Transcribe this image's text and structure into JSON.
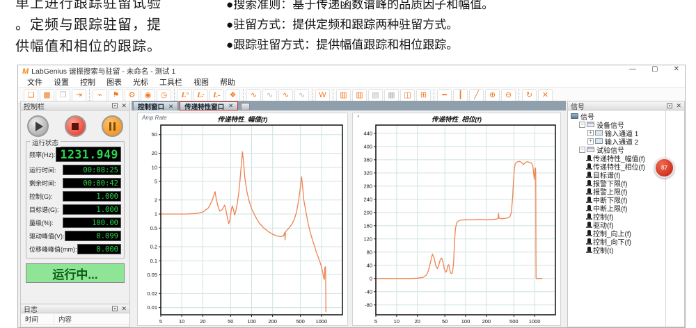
{
  "hero": {
    "left_lines": [
      "单上进行跟踪驻留试验",
      "。定频与跟踪驻留，提",
      "供幅值和相位的跟踪。"
    ],
    "bullets": [
      "●搜索准则：基于传递函数谱峰的品质因子和幅值。",
      "●驻留方式：提供定频和跟踪两种驻留方式。",
      "●跟踪驻留方式：提供幅值跟踪和相位跟踪。"
    ]
  },
  "window": {
    "title": "LabGenius 谐振搜索与驻留 - 未命名 - 测试 1",
    "logo": "M",
    "controls": {
      "minimize": "—",
      "restore": "▢",
      "close": "✕"
    }
  },
  "menu": {
    "items": [
      "文件",
      "设置",
      "控制",
      "图表",
      "光标",
      "工具栏",
      "视图",
      "帮助"
    ]
  },
  "toolbar": {
    "groups": [
      {
        "items": [
          {
            "name": "new-test",
            "glyph": "❏",
            "c": "o"
          },
          {
            "name": "save",
            "glyph": "▦",
            "c": "o"
          },
          {
            "name": "open",
            "glyph": "❒",
            "c": "g"
          },
          {
            "name": "export",
            "glyph": "⇥",
            "c": "o"
          }
        ]
      },
      {
        "items": [
          {
            "name": "device",
            "glyph": "⌁",
            "c": "o"
          },
          {
            "name": "flag",
            "glyph": "⚑",
            "c": "o"
          },
          {
            "name": "settings",
            "glyph": "⚙",
            "c": "o"
          },
          {
            "name": "spectrum",
            "glyph": "◉",
            "c": "o"
          },
          {
            "name": "schedule",
            "glyph": "◷",
            "c": "o"
          }
        ]
      },
      {
        "items": [
          {
            "name": "level-zero",
            "glyph": "Lº",
            "c": "o",
            "lv": true
          },
          {
            "name": "level-up",
            "glyph": "L:",
            "c": "o",
            "lv": true
          },
          {
            "name": "level-down",
            "glyph": "L-",
            "c": "o",
            "lv": true
          },
          {
            "name": "window-layout",
            "glyph": "❖",
            "c": "o"
          }
        ]
      },
      {
        "items": [
          {
            "name": "wave-start",
            "glyph": "∿",
            "c": "o"
          },
          {
            "name": "wave-stop",
            "glyph": "∿",
            "c": "g"
          },
          {
            "name": "wave-loop",
            "glyph": "∿",
            "c": "o"
          },
          {
            "name": "wave-pause",
            "glyph": "∿",
            "c": "g"
          }
        ]
      },
      {
        "items": [
          {
            "name": "word-report",
            "glyph": "W",
            "c": "o"
          }
        ]
      },
      {
        "items": [
          {
            "name": "chart-bars-1",
            "glyph": "▥",
            "c": "o"
          },
          {
            "name": "chart-bars-2",
            "glyph": "▥",
            "c": "o"
          },
          {
            "name": "chart-bars-3",
            "glyph": "▤",
            "c": "g"
          },
          {
            "name": "chart-bars-4",
            "glyph": "▦",
            "c": "g"
          },
          {
            "name": "layout-split",
            "glyph": "◫",
            "c": "o"
          },
          {
            "name": "layout-grid",
            "glyph": "⊞",
            "c": "o"
          }
        ]
      },
      {
        "items": [
          {
            "name": "cursor-horizontal",
            "glyph": "━",
            "c": "o"
          },
          {
            "name": "cursor-vertical",
            "glyph": "┃",
            "c": "o"
          },
          {
            "name": "cursor-slope",
            "glyph": "╱",
            "c": "o"
          },
          {
            "name": "zoom-in",
            "glyph": "⊕",
            "c": "o"
          },
          {
            "name": "zoom-out",
            "glyph": "⊖",
            "c": "o"
          }
        ]
      },
      {
        "items": [
          {
            "name": "refresh",
            "glyph": "↻",
            "c": "o"
          },
          {
            "name": "auto-scale",
            "glyph": "✕",
            "c": "o"
          }
        ]
      }
    ]
  },
  "tabs": {
    "items": [
      {
        "label": "控制窗口",
        "close": "✕",
        "active": false
      },
      {
        "label": "传递特性窗口",
        "close": "✕",
        "active": true
      }
    ]
  },
  "control_panel": {
    "header": "控制栏",
    "status_group": "运行状态",
    "rows": [
      {
        "label": "频率(Hz):",
        "value": "1231.949",
        "big": true
      },
      {
        "label": "运行时间:",
        "value": "00:08:25"
      },
      {
        "label": "剩余时间:",
        "value": "00:00:42"
      },
      {
        "label": "控制(G):",
        "value": "1.000"
      },
      {
        "label": "目标谱(G):",
        "value": "1.000"
      },
      {
        "label": "量级(%):",
        "value": "100.00"
      },
      {
        "label": "驱动峰值(V):",
        "value": "0.099"
      },
      {
        "label": "位移峰峰值(mm):",
        "value": "0.000"
      }
    ],
    "run_state": "运行中..."
  },
  "log_panel": {
    "header": "日志",
    "columns": [
      "时间",
      "内容"
    ]
  },
  "signal_panel": {
    "header": "信号",
    "badge": "87",
    "tree": [
      {
        "label": "信号",
        "depth": 0,
        "icon": "root"
      },
      {
        "label": "设备信号",
        "depth": 1,
        "icon": "node",
        "exp": "−"
      },
      {
        "label": "输入通道 1",
        "depth": 2,
        "icon": "channel",
        "exp": "+"
      },
      {
        "label": "输入通道 2",
        "depth": 2,
        "icon": "channel",
        "exp": "+"
      },
      {
        "label": "试验信号",
        "depth": 1,
        "icon": "node",
        "exp": "−"
      },
      {
        "label": "传递特性_幅值(f)",
        "depth": 2,
        "icon": "leaf"
      },
      {
        "label": "传递特性_相位(f)",
        "depth": 2,
        "icon": "leaf"
      },
      {
        "label": "目标谱(f)",
        "depth": 2,
        "icon": "leaf"
      },
      {
        "label": "报警下限(f)",
        "depth": 2,
        "icon": "leaf"
      },
      {
        "label": "报警上限(f)",
        "depth": 2,
        "icon": "leaf"
      },
      {
        "label": "中断下限(f)",
        "depth": 2,
        "icon": "leaf"
      },
      {
        "label": "中断上限(f)",
        "depth": 2,
        "icon": "leaf"
      },
      {
        "label": "控制(f)",
        "depth": 2,
        "icon": "leaf"
      },
      {
        "label": "驱动(f)",
        "depth": 2,
        "icon": "leaf"
      },
      {
        "label": "控制_向上(f)",
        "depth": 2,
        "icon": "leaf"
      },
      {
        "label": "控制_向下(f)",
        "depth": 2,
        "icon": "leaf"
      },
      {
        "label": "控制(t)",
        "depth": 2,
        "icon": "leaf"
      }
    ]
  },
  "chart_data": [
    {
      "type": "line",
      "title": "传递特性_幅值(f)",
      "unit_label": "Amp Rate",
      "x_scale": "log",
      "y_scale": "log",
      "x_range": [
        5,
        2000
      ],
      "y_range": [
        0.007,
        80
      ],
      "x_ticks": [
        5,
        10,
        20,
        50,
        100,
        200,
        500,
        1000
      ],
      "y_ticks": [
        50,
        20,
        10,
        5,
        2,
        1,
        0.5,
        0.2,
        0.1,
        0.05,
        0.02,
        0.01
      ],
      "grid": true,
      "legend": "none",
      "series": [
        {
          "name": "传递特性_幅值",
          "color": "#ee8351",
          "points": [
            [
              5,
              1
            ],
            [
              8,
              1
            ],
            [
              12,
              1
            ],
            [
              16,
              1.03
            ],
            [
              20,
              1.1
            ],
            [
              24,
              1.35
            ],
            [
              27,
              1.9
            ],
            [
              29,
              2.6
            ],
            [
              30,
              3.0
            ],
            [
              31,
              2.2
            ],
            [
              33,
              1.45
            ],
            [
              35,
              1.15
            ],
            [
              38,
              1.25
            ],
            [
              41,
              1.55
            ],
            [
              43,
              1.2
            ],
            [
              45,
              0.85
            ],
            [
              47,
              0.62
            ],
            [
              49,
              0.75
            ],
            [
              51,
              1.2
            ],
            [
              53,
              1.5
            ],
            [
              55,
              1.25
            ],
            [
              57,
              0.95
            ],
            [
              59,
              1.1
            ],
            [
              62,
              1.6
            ],
            [
              65,
              2.6
            ],
            [
              68,
              5
            ],
            [
              71,
              11
            ],
            [
              74,
              21.5
            ],
            [
              77,
              12
            ],
            [
              80,
              6
            ],
            [
              85,
              3.2
            ],
            [
              92,
              1.9
            ],
            [
              100,
              1.3
            ],
            [
              115,
              0.85
            ],
            [
              130,
              0.63
            ],
            [
              150,
              0.5
            ],
            [
              175,
              0.42
            ],
            [
              200,
              0.37
            ],
            [
              230,
              0.34
            ],
            [
              260,
              0.33
            ],
            [
              285,
              0.34
            ],
            [
              298,
              0.4
            ],
            [
              302,
              0.28
            ],
            [
              306,
              0.42
            ],
            [
              320,
              0.45
            ],
            [
              350,
              0.52
            ],
            [
              380,
              0.62
            ],
            [
              410,
              0.78
            ],
            [
              440,
              1.1
            ],
            [
              470,
              1.9
            ],
            [
              500,
              3.8
            ],
            [
              520,
              6.3
            ],
            [
              540,
              3.5
            ],
            [
              560,
              2.0
            ],
            [
              600,
              1.1
            ],
            [
              650,
              0.6
            ],
            [
              700,
              0.38
            ],
            [
              750,
              0.27
            ],
            [
              800,
              0.2
            ],
            [
              850,
              0.15
            ],
            [
              900,
              0.12
            ],
            [
              950,
              0.095
            ],
            [
              1000,
              0.075
            ],
            [
              1050,
              0.055
            ],
            [
              1080,
              0.042
            ],
            [
              1100,
              0.04
            ],
            [
              1120,
              0.07
            ],
            [
              1140,
              0.075
            ],
            [
              1150,
              0.045
            ],
            [
              1155,
              0.02
            ],
            [
              1160,
              0.008
            ]
          ]
        }
      ]
    },
    {
      "type": "line",
      "title": "传递特性_相位(f)",
      "unit_label": "°",
      "x_scale": "log",
      "y_scale": "linear",
      "x_range": [
        5,
        2000
      ],
      "y_range": [
        -110,
        465
      ],
      "x_ticks": [
        5,
        10,
        20,
        50,
        100,
        200,
        500,
        1000
      ],
      "y_ticks": [
        440,
        400,
        360,
        320,
        280,
        240,
        200,
        160,
        120,
        80,
        40,
        0,
        -40,
        -80
      ],
      "grid": true,
      "legend": "none",
      "series": [
        {
          "name": "传递特性_相位",
          "color": "#ee8351",
          "points": [
            [
              5,
              0
            ],
            [
              10,
              0
            ],
            [
              15,
              0
            ],
            [
              20,
              1
            ],
            [
              24,
              3
            ],
            [
              27,
              10
            ],
            [
              29,
              25
            ],
            [
              31,
              50
            ],
            [
              33,
              74
            ],
            [
              35,
              62
            ],
            [
              37,
              38
            ],
            [
              39,
              30
            ],
            [
              41,
              42
            ],
            [
              43,
              58
            ],
            [
              45,
              62
            ],
            [
              47,
              50
            ],
            [
              49,
              30
            ],
            [
              51,
              19
            ],
            [
              53,
              22
            ],
            [
              55,
              38
            ],
            [
              57,
              42
            ],
            [
              59,
              25
            ],
            [
              61,
              16
            ],
            [
              63,
              15
            ],
            [
              65,
              22
            ],
            [
              67,
              50
            ],
            [
              69,
              110
            ],
            [
              71,
              150
            ],
            [
              74,
              168
            ],
            [
              78,
              174
            ],
            [
              85,
              177
            ],
            [
              100,
              178
            ],
            [
              130,
              178
            ],
            [
              160,
              179
            ],
            [
              200,
              178
            ],
            [
              240,
              179
            ],
            [
              280,
              180
            ],
            [
              295,
              182
            ],
            [
              300,
              198
            ],
            [
              305,
              183
            ],
            [
              330,
              181
            ],
            [
              370,
              182
            ],
            [
              410,
              184
            ],
            [
              440,
              188
            ],
            [
              460,
              200
            ],
            [
              480,
              245
            ],
            [
              495,
              300
            ],
            [
              510,
              335
            ],
            [
              525,
              348
            ],
            [
              545,
              352
            ],
            [
              570,
              354
            ],
            [
              600,
              355
            ],
            [
              630,
              353
            ],
            [
              660,
              350
            ],
            [
              690,
              345
            ],
            [
              710,
              348
            ],
            [
              740,
              352
            ],
            [
              780,
              354
            ],
            [
              820,
              353
            ],
            [
              860,
              351
            ],
            [
              900,
              350
            ],
            [
              940,
              342
            ],
            [
              970,
              318
            ],
            [
              990,
              300
            ],
            [
              1000,
              310
            ],
            [
              1010,
              332
            ],
            [
              1025,
              335
            ],
            [
              1035,
              330
            ],
            [
              1040,
              300
            ],
            [
              1045,
              100
            ],
            [
              1048,
              2
            ],
            [
              1060,
              0
            ],
            [
              1100,
              0
            ],
            [
              1200,
              0
            ],
            [
              1300,
              0
            ]
          ]
        }
      ]
    }
  ]
}
